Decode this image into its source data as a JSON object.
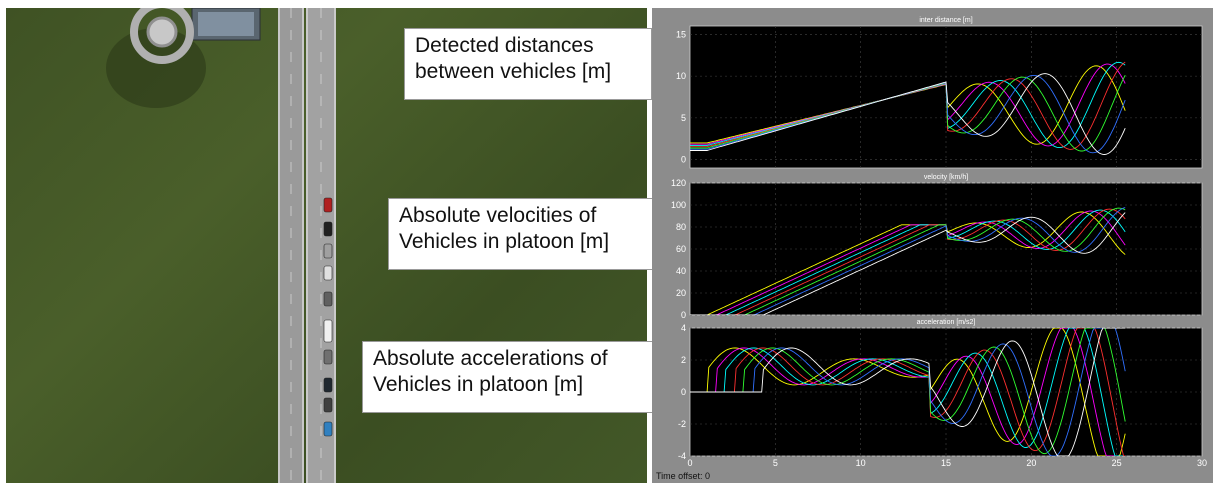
{
  "callouts": [
    {
      "line1": "Detected distances",
      "line2": "between vehicles [m]"
    },
    {
      "line1": "Absolute velocities of",
      "line2": "Vehicles in platoon [m]"
    },
    {
      "line1": "Absolute accelerations of",
      "line2": "Vehicles in platoon [m]"
    }
  ],
  "scope": {
    "time_offset_label": "Time offset:",
    "time_offset_value": "0",
    "background": "#000000",
    "frame": "#8c8c8c"
  },
  "chart_data": [
    {
      "type": "line",
      "title": "inter distance [m]",
      "xlim": [
        0,
        30
      ],
      "ylim": [
        -1,
        16
      ],
      "yticks": [
        0,
        5,
        10,
        15
      ],
      "xticks": [],
      "grid": true,
      "note": "multiple overlaid traces, one per vehicle gap; values approximated from the plot"
    },
    {
      "type": "line",
      "title": "velocity [km/h]",
      "xlim": [
        0,
        30
      ],
      "ylim": [
        0,
        120
      ],
      "yticks": [
        0,
        20,
        40,
        60,
        80,
        100,
        120
      ],
      "xticks": [],
      "grid": true
    },
    {
      "type": "line",
      "title": "acceleration [m/s2]",
      "xlim": [
        0,
        30
      ],
      "ylim": [
        -4,
        4
      ],
      "yticks": [
        -4,
        -2,
        0,
        2,
        4
      ],
      "xticks": [
        0,
        5,
        10,
        15,
        20,
        25,
        30
      ],
      "grid": true
    }
  ],
  "series_colors": [
    "#ffff00",
    "#ff00ff",
    "#00ffff",
    "#ff3030",
    "#30ff30",
    "#3070ff",
    "#ffffff"
  ],
  "vehicles": [
    {
      "color": "#b02020"
    },
    {
      "color": "#202020"
    },
    {
      "color": "#a0a0a0"
    },
    {
      "color": "#e0e0e0"
    },
    {
      "color": "#606060"
    },
    {
      "color": "#f0f0f0"
    },
    {
      "color": "#707070"
    },
    {
      "color": "#202830"
    },
    {
      "color": "#404040"
    },
    {
      "color": "#3080c0"
    }
  ]
}
